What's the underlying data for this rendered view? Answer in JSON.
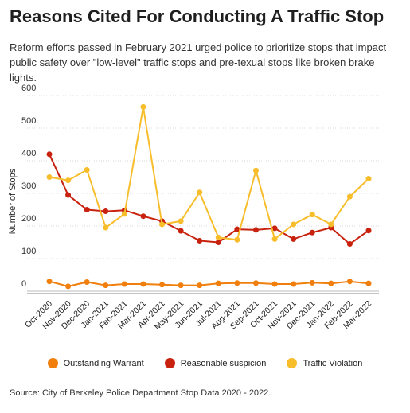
{
  "title": "Reasons Cited For Conducting A Traffic Stop",
  "subtitle": "Reform efforts passed in February 2021 urged police to prioritize stops that impact public safety over \"low-level\" traffic stops and pre-texual stops like broken brake lights.",
  "source": "Source: City of Berkeley Police Department Stop Data 2020 - 2022.",
  "chart_data": {
    "type": "line",
    "ylabel": "Number of Stops",
    "xlabel": "",
    "ylim": [
      0,
      600
    ],
    "yticks": [
      0,
      100,
      200,
      300,
      400,
      500,
      600
    ],
    "grid": true,
    "legend_position": "bottom",
    "categories": [
      "Oct-2020",
      "Nov-2020",
      "Dec-2020",
      "Jan-2021",
      "Feb-2021",
      "Mar-2021",
      "Apr-2021",
      "May-2021",
      "Jun-2021",
      "Jul-2021",
      "Aug-2021",
      "Sep-2021",
      "Oct-2021",
      "Nov-2021",
      "Dec-2021",
      "Jan-2022",
      "Feb-2022",
      "Mar-2022"
    ],
    "series": [
      {
        "name": "Outstanding Warrant",
        "color": "#f07f0d",
        "values": [
          30,
          15,
          28,
          18,
          22,
          22,
          20,
          18,
          18,
          24,
          25,
          25,
          22,
          22,
          26,
          24,
          30,
          24
        ]
      },
      {
        "name": "Reasonable suspicion",
        "color": "#c8220e",
        "values": [
          420,
          295,
          250,
          245,
          248,
          230,
          215,
          185,
          155,
          150,
          190,
          188,
          193,
          160,
          180,
          195,
          145,
          186
        ]
      },
      {
        "name": "Traffic Violation",
        "color": "#f7bd2b",
        "values": [
          350,
          340,
          372,
          195,
          237,
          565,
          205,
          215,
          303,
          165,
          158,
          370,
          160,
          205,
          235,
          205,
          290,
          345
        ]
      }
    ]
  }
}
